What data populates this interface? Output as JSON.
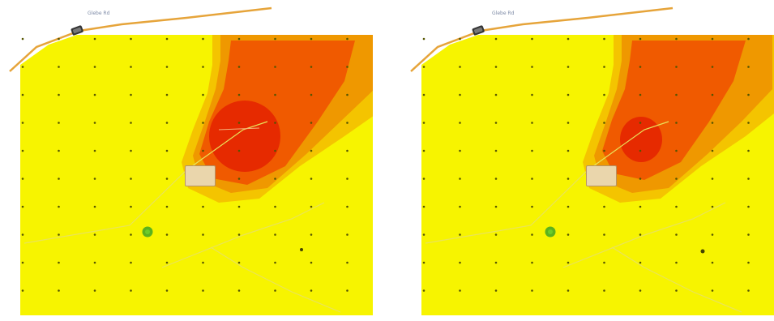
{
  "panels": [
    {
      "id": "left",
      "place_label": "Glebe Rd",
      "callout_lines": [
        "",
        "",
        ""
      ],
      "colors": {
        "base": "#f7f400",
        "low": "#f4c400",
        "mid": "#ef9800",
        "high": "#f05a00",
        "peak": "#e62a00",
        "receptor_dot": "#555500",
        "source_marker": "#5bb21e",
        "road": "#e6a43a"
      }
    },
    {
      "id": "right",
      "place_label": "Glebe Rd",
      "callout_lines": [
        "",
        "",
        ""
      ],
      "colors": {
        "base": "#f7f400",
        "low": "#f4c400",
        "mid": "#ef9800",
        "high": "#f05a00",
        "peak": "#e62a00",
        "receptor_dot": "#555500",
        "source_marker": "#5bb21e",
        "road": "#e6a43a"
      }
    }
  ]
}
